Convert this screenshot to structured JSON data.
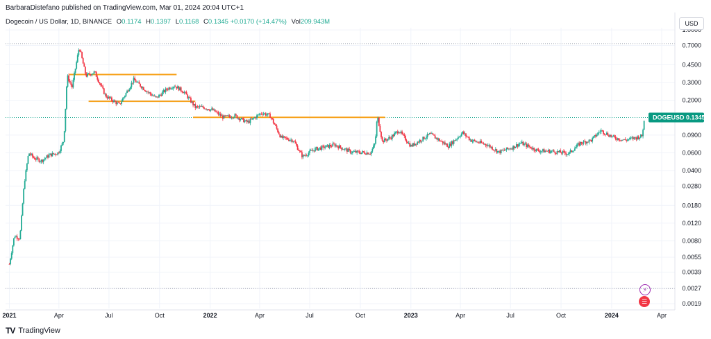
{
  "header": {
    "published_text": "BarbaraDistefano published on TradingView.com, Mar 01, 2024 20:04 UTC+1"
  },
  "legend": {
    "symbol": "Dogecoin / US Dollar, 1D, BINANCE",
    "open_label": "O",
    "open_value": "0.1174",
    "high_label": "H",
    "high_value": "0.1397",
    "low_label": "L",
    "low_value": "0.1168",
    "close_label": "C",
    "close_value": "0.1345",
    "change_value": "+0.0170 (+14.47%)",
    "vol_label": "Vol",
    "vol_value": "209.943M"
  },
  "currency": "USD",
  "price_badge": {
    "ticker": "DOGEUSD",
    "price": "0.1345"
  },
  "footer": {
    "brand": "TradingView",
    "logo_text": "TV"
  },
  "colors": {
    "up": "#22ab94",
    "down": "#f23645",
    "level_line": "#f7a21b",
    "badge_bg": "#089981",
    "grid": "#f0f3fa",
    "axis": "#e0e3eb"
  },
  "icons": [
    "lightning-icon",
    "flag-icon"
  ],
  "chart_data": {
    "type": "candlestick",
    "y_scale": "log",
    "y_ticks": [
      "1.0000",
      "0.7000",
      "0.4500",
      "0.3000",
      "0.2000",
      "0.1345",
      "0.0900",
      "0.0600",
      "0.0400",
      "0.0280",
      "0.0180",
      "0.0120",
      "0.0080",
      "0.0055",
      "0.0039",
      "0.0027",
      "0.0019"
    ],
    "x_ticks": [
      "2021",
      "Apr",
      "Jul",
      "Oct",
      "2022",
      "Apr",
      "Jul",
      "Oct",
      "2023",
      "Apr",
      "Jul",
      "Oct",
      "2024",
      "Apr"
    ],
    "horizontal_levels": [
      {
        "from": "2021-04-20",
        "to": "2021-11-01",
        "price": 0.36
      },
      {
        "from": "2021-05-25",
        "to": "2021-12-05",
        "price": 0.195
      },
      {
        "from": "2021-12-01",
        "to": "2022-11-15",
        "price": 0.135
      }
    ],
    "series": [
      {
        "date": "2021-01-01",
        "close": 0.0047
      },
      {
        "date": "2021-01-10",
        "close": 0.009
      },
      {
        "date": "2021-01-20",
        "close": 0.0085
      },
      {
        "date": "2021-01-28",
        "close": 0.03
      },
      {
        "date": "2021-02-05",
        "close": 0.06
      },
      {
        "date": "2021-02-15",
        "close": 0.053
      },
      {
        "date": "2021-02-28",
        "close": 0.05
      },
      {
        "date": "2021-03-15",
        "close": 0.057
      },
      {
        "date": "2021-03-31",
        "close": 0.06
      },
      {
        "date": "2021-04-10",
        "close": 0.08
      },
      {
        "date": "2021-04-16",
        "close": 0.35
      },
      {
        "date": "2021-04-25",
        "close": 0.27
      },
      {
        "date": "2021-05-08",
        "close": 0.68
      },
      {
        "date": "2021-05-20",
        "close": 0.35
      },
      {
        "date": "2021-06-05",
        "close": 0.38
      },
      {
        "date": "2021-06-25",
        "close": 0.22
      },
      {
        "date": "2021-07-20",
        "close": 0.18
      },
      {
        "date": "2021-08-15",
        "close": 0.32
      },
      {
        "date": "2021-09-10",
        "close": 0.24
      },
      {
        "date": "2021-09-25",
        "close": 0.21
      },
      {
        "date": "2021-10-15",
        "close": 0.26
      },
      {
        "date": "2021-10-28",
        "close": 0.28
      },
      {
        "date": "2021-11-15",
        "close": 0.24
      },
      {
        "date": "2021-12-05",
        "close": 0.17
      },
      {
        "date": "2021-12-20",
        "close": 0.17
      },
      {
        "date": "2022-01-05",
        "close": 0.16
      },
      {
        "date": "2022-01-25",
        "close": 0.135
      },
      {
        "date": "2022-02-15",
        "close": 0.14
      },
      {
        "date": "2022-03-10",
        "close": 0.12
      },
      {
        "date": "2022-04-05",
        "close": 0.15
      },
      {
        "date": "2022-04-20",
        "close": 0.14
      },
      {
        "date": "2022-05-10",
        "close": 0.085
      },
      {
        "date": "2022-06-01",
        "close": 0.08
      },
      {
        "date": "2022-06-18",
        "close": 0.055
      },
      {
        "date": "2022-07-10",
        "close": 0.065
      },
      {
        "date": "2022-08-15",
        "close": 0.072
      },
      {
        "date": "2022-09-15",
        "close": 0.061
      },
      {
        "date": "2022-10-20",
        "close": 0.06
      },
      {
        "date": "2022-10-28",
        "close": 0.075
      },
      {
        "date": "2022-11-01",
        "close": 0.14
      },
      {
        "date": "2022-11-10",
        "close": 0.078
      },
      {
        "date": "2022-11-25",
        "close": 0.085
      },
      {
        "date": "2022-12-10",
        "close": 0.1
      },
      {
        "date": "2023-01-01",
        "close": 0.07
      },
      {
        "date": "2023-02-05",
        "close": 0.092
      },
      {
        "date": "2023-03-10",
        "close": 0.07
      },
      {
        "date": "2023-04-05",
        "close": 0.095
      },
      {
        "date": "2023-04-20",
        "close": 0.08
      },
      {
        "date": "2023-05-20",
        "close": 0.072
      },
      {
        "date": "2023-06-10",
        "close": 0.061
      },
      {
        "date": "2023-07-05",
        "close": 0.068
      },
      {
        "date": "2023-07-20",
        "close": 0.075
      },
      {
        "date": "2023-08-20",
        "close": 0.063
      },
      {
        "date": "2023-09-15",
        "close": 0.062
      },
      {
        "date": "2023-10-15",
        "close": 0.059
      },
      {
        "date": "2023-11-05",
        "close": 0.075
      },
      {
        "date": "2023-11-25",
        "close": 0.08
      },
      {
        "date": "2023-12-12",
        "close": 0.1
      },
      {
        "date": "2024-01-05",
        "close": 0.085
      },
      {
        "date": "2024-01-25",
        "close": 0.08
      },
      {
        "date": "2024-02-15",
        "close": 0.085
      },
      {
        "date": "2024-02-25",
        "close": 0.088
      },
      {
        "date": "2024-03-01",
        "close": 0.1345
      }
    ]
  }
}
